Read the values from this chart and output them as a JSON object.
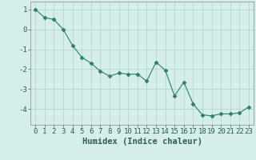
{
  "x": [
    0,
    1,
    2,
    3,
    4,
    5,
    6,
    7,
    8,
    9,
    10,
    11,
    12,
    13,
    14,
    15,
    16,
    17,
    18,
    19,
    20,
    21,
    22,
    23
  ],
  "y": [
    1.0,
    0.6,
    0.5,
    0.0,
    -0.8,
    -1.4,
    -1.7,
    -2.1,
    -2.35,
    -2.2,
    -2.25,
    -2.25,
    -2.6,
    -1.65,
    -2.05,
    -3.35,
    -2.65,
    -3.75,
    -4.3,
    -4.35,
    -4.25,
    -4.25,
    -4.2,
    -3.9
  ],
  "line_color": "#2e7d6e",
  "marker": "D",
  "marker_size": 2.5,
  "bg_color": "#d5eeea",
  "grid_color": "#aad4cc",
  "xlabel": "Humidex (Indice chaleur)",
  "ylim": [
    -4.8,
    1.4
  ],
  "xlim": [
    -0.5,
    23.5
  ],
  "yticks": [
    -4,
    -3,
    -2,
    -1,
    0,
    1
  ],
  "xticks": [
    0,
    1,
    2,
    3,
    4,
    5,
    6,
    7,
    8,
    9,
    10,
    11,
    12,
    13,
    14,
    15,
    16,
    17,
    18,
    19,
    20,
    21,
    22,
    23
  ],
  "xlabel_fontsize": 7.5,
  "tick_fontsize": 6.5
}
